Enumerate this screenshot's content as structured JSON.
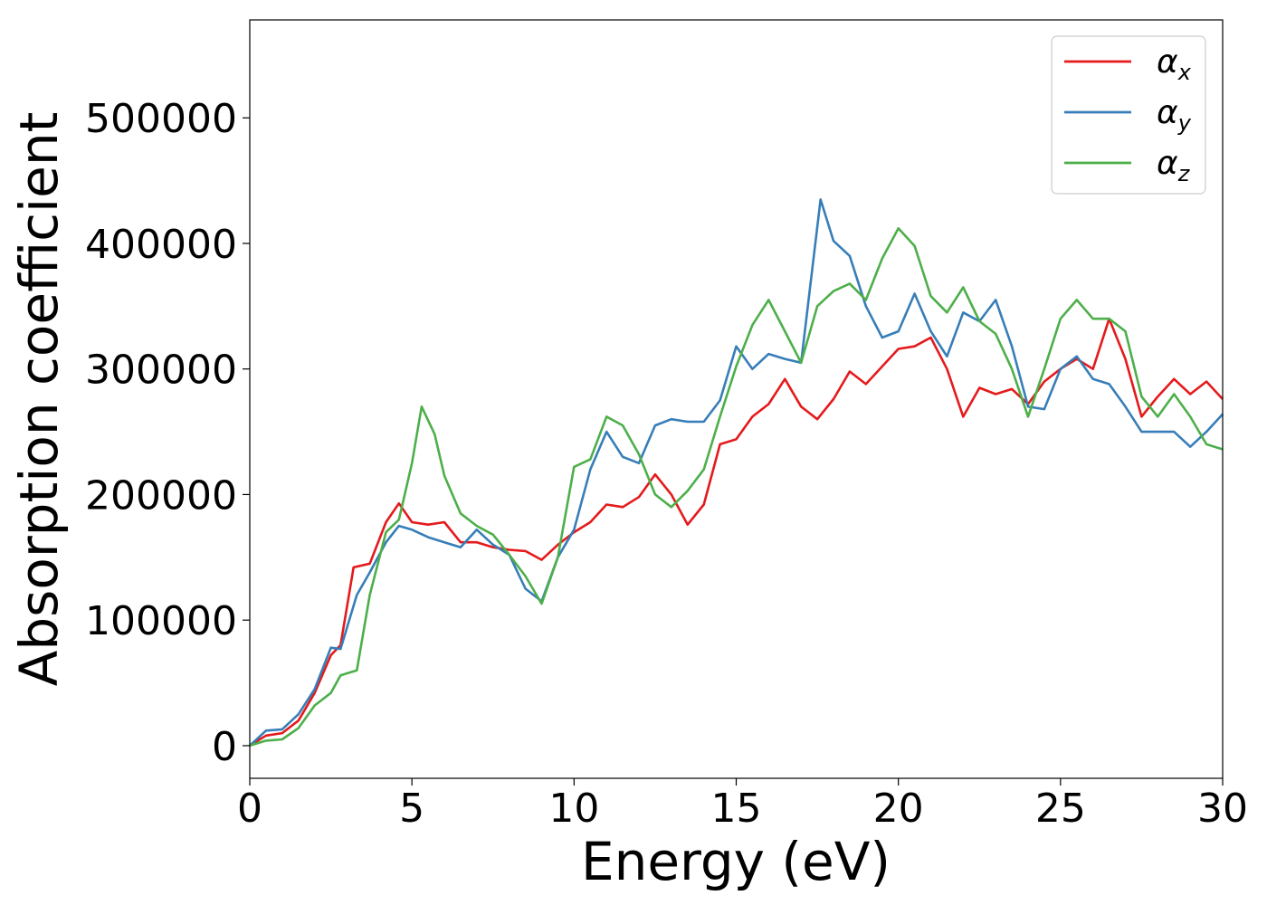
{
  "chart_data": {
    "type": "line",
    "title": "",
    "xlabel": "Energy (eV)",
    "ylabel": "Absorption coefficient",
    "xlim": [
      0,
      30
    ],
    "ylim": [
      -26000,
      578000
    ],
    "xticks": [
      0,
      5,
      10,
      15,
      20,
      25,
      30
    ],
    "xtick_labels": [
      "0",
      "5",
      "10",
      "15",
      "20",
      "25",
      "30"
    ],
    "yticks": [
      0,
      100000,
      200000,
      300000,
      400000,
      500000
    ],
    "ytick_labels": [
      "0",
      "100000",
      "200000",
      "300000",
      "400000",
      "500000"
    ],
    "grid": false,
    "legend_position": "top-right",
    "series": [
      {
        "name": "α_x",
        "legend_base": "α",
        "legend_sub": "x",
        "color": "#e41a1c",
        "points": [
          [
            0,
            0
          ],
          [
            0.5,
            8000
          ],
          [
            1,
            10000
          ],
          [
            1.5,
            20000
          ],
          [
            2,
            42000
          ],
          [
            2.5,
            72000
          ],
          [
            2.8,
            80000
          ],
          [
            3.2,
            142000
          ],
          [
            3.7,
            145000
          ],
          [
            4.2,
            178000
          ],
          [
            4.6,
            193000
          ],
          [
            5,
            178000
          ],
          [
            5.5,
            176000
          ],
          [
            6,
            178000
          ],
          [
            6.5,
            162000
          ],
          [
            7,
            162000
          ],
          [
            7.5,
            158000
          ],
          [
            8,
            156000
          ],
          [
            8.5,
            155000
          ],
          [
            9,
            148000
          ],
          [
            9.5,
            160000
          ],
          [
            10,
            170000
          ],
          [
            10.5,
            178000
          ],
          [
            11,
            192000
          ],
          [
            11.5,
            190000
          ],
          [
            12,
            198000
          ],
          [
            12.5,
            216000
          ],
          [
            13,
            200000
          ],
          [
            13.5,
            176000
          ],
          [
            14,
            192000
          ],
          [
            14.5,
            240000
          ],
          [
            15,
            244000
          ],
          [
            15.5,
            262000
          ],
          [
            16,
            272000
          ],
          [
            16.5,
            292000
          ],
          [
            17,
            270000
          ],
          [
            17.5,
            260000
          ],
          [
            18,
            276000
          ],
          [
            18.5,
            298000
          ],
          [
            19,
            288000
          ],
          [
            19.5,
            302000
          ],
          [
            20,
            316000
          ],
          [
            20.5,
            318000
          ],
          [
            21,
            325000
          ],
          [
            21.5,
            300000
          ],
          [
            22,
            262000
          ],
          [
            22.5,
            285000
          ],
          [
            23,
            280000
          ],
          [
            23.5,
            284000
          ],
          [
            24,
            272000
          ],
          [
            24.5,
            290000
          ],
          [
            25,
            300000
          ],
          [
            25.5,
            308000
          ],
          [
            26,
            300000
          ],
          [
            26.5,
            340000
          ],
          [
            27,
            308000
          ],
          [
            27.5,
            262000
          ],
          [
            28,
            278000
          ],
          [
            28.5,
            292000
          ],
          [
            29,
            280000
          ],
          [
            29.5,
            290000
          ],
          [
            30,
            276000
          ]
        ]
      },
      {
        "name": "α_y",
        "legend_base": "α",
        "legend_sub": "y",
        "color": "#377eb8",
        "points": [
          [
            0,
            0
          ],
          [
            0.5,
            12000
          ],
          [
            1,
            13000
          ],
          [
            1.5,
            25000
          ],
          [
            2,
            45000
          ],
          [
            2.5,
            78000
          ],
          [
            2.8,
            77000
          ],
          [
            3.3,
            120000
          ],
          [
            3.7,
            138000
          ],
          [
            4.2,
            162000
          ],
          [
            4.6,
            175000
          ],
          [
            5,
            172000
          ],
          [
            5.5,
            166000
          ],
          [
            6,
            162000
          ],
          [
            6.5,
            158000
          ],
          [
            7,
            172000
          ],
          [
            7.5,
            160000
          ],
          [
            8,
            152000
          ],
          [
            8.5,
            125000
          ],
          [
            9,
            115000
          ],
          [
            9.5,
            150000
          ],
          [
            10,
            172000
          ],
          [
            10.5,
            220000
          ],
          [
            11,
            250000
          ],
          [
            11.5,
            230000
          ],
          [
            12,
            225000
          ],
          [
            12.5,
            255000
          ],
          [
            13,
            260000
          ],
          [
            13.5,
            258000
          ],
          [
            14,
            258000
          ],
          [
            14.5,
            275000
          ],
          [
            15,
            318000
          ],
          [
            15.5,
            300000
          ],
          [
            16,
            312000
          ],
          [
            16.5,
            308000
          ],
          [
            17,
            305000
          ],
          [
            17.6,
            435000
          ],
          [
            18,
            402000
          ],
          [
            18.5,
            390000
          ],
          [
            19,
            350000
          ],
          [
            19.5,
            325000
          ],
          [
            20,
            330000
          ],
          [
            20.5,
            360000
          ],
          [
            21,
            330000
          ],
          [
            21.5,
            310000
          ],
          [
            22,
            345000
          ],
          [
            22.5,
            338000
          ],
          [
            23,
            355000
          ],
          [
            23.5,
            318000
          ],
          [
            24,
            270000
          ],
          [
            24.5,
            268000
          ],
          [
            25,
            300000
          ],
          [
            25.5,
            310000
          ],
          [
            26,
            292000
          ],
          [
            26.5,
            288000
          ],
          [
            27,
            270000
          ],
          [
            27.5,
            250000
          ],
          [
            28,
            250000
          ],
          [
            28.5,
            250000
          ],
          [
            29,
            238000
          ],
          [
            29.5,
            250000
          ],
          [
            30,
            264000
          ]
        ]
      },
      {
        "name": "α_z",
        "legend_base": "α",
        "legend_sub": "z",
        "color": "#4daf4a",
        "points": [
          [
            0,
            0
          ],
          [
            0.5,
            4000
          ],
          [
            1,
            5000
          ],
          [
            1.5,
            14000
          ],
          [
            2,
            32000
          ],
          [
            2.5,
            42000
          ],
          [
            2.8,
            56000
          ],
          [
            3.3,
            60000
          ],
          [
            3.7,
            120000
          ],
          [
            4.2,
            170000
          ],
          [
            4.6,
            180000
          ],
          [
            5,
            225000
          ],
          [
            5.3,
            270000
          ],
          [
            5.7,
            248000
          ],
          [
            6,
            215000
          ],
          [
            6.5,
            185000
          ],
          [
            7,
            175000
          ],
          [
            7.5,
            168000
          ],
          [
            8,
            152000
          ],
          [
            8.5,
            135000
          ],
          [
            9,
            113000
          ],
          [
            9.5,
            150000
          ],
          [
            10,
            222000
          ],
          [
            10.5,
            228000
          ],
          [
            11,
            262000
          ],
          [
            11.5,
            255000
          ],
          [
            12,
            232000
          ],
          [
            12.5,
            200000
          ],
          [
            13,
            190000
          ],
          [
            13.5,
            203000
          ],
          [
            14,
            220000
          ],
          [
            14.5,
            262000
          ],
          [
            15,
            302000
          ],
          [
            15.5,
            335000
          ],
          [
            16,
            355000
          ],
          [
            16.5,
            330000
          ],
          [
            17,
            305000
          ],
          [
            17.5,
            350000
          ],
          [
            18,
            362000
          ],
          [
            18.5,
            368000
          ],
          [
            19,
            355000
          ],
          [
            19.5,
            388000
          ],
          [
            20,
            412000
          ],
          [
            20.5,
            398000
          ],
          [
            21,
            358000
          ],
          [
            21.5,
            345000
          ],
          [
            22,
            365000
          ],
          [
            22.5,
            338000
          ],
          [
            23,
            328000
          ],
          [
            23.5,
            300000
          ],
          [
            24,
            262000
          ],
          [
            24.5,
            300000
          ],
          [
            25,
            340000
          ],
          [
            25.5,
            355000
          ],
          [
            26,
            340000
          ],
          [
            26.5,
            340000
          ],
          [
            27,
            330000
          ],
          [
            27.5,
            278000
          ],
          [
            28,
            262000
          ],
          [
            28.5,
            280000
          ],
          [
            29,
            262000
          ],
          [
            29.5,
            240000
          ],
          [
            30,
            236000
          ]
        ]
      }
    ]
  }
}
